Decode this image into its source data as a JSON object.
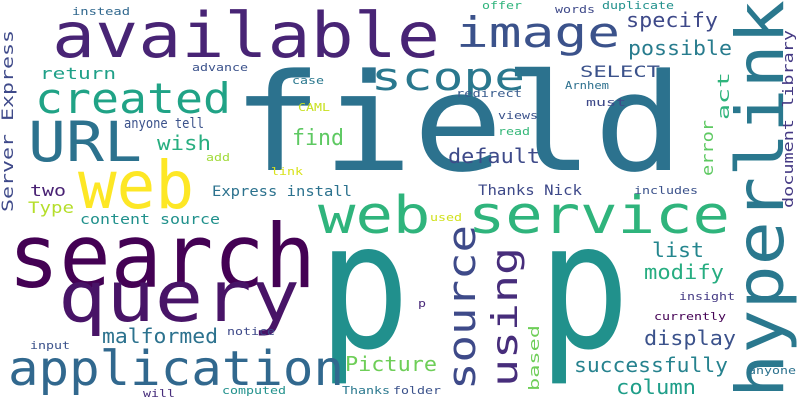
{
  "words": [
    {
      "text": "field",
      "color": "#2c728e",
      "vertical": false
    },
    {
      "text": "p",
      "color": "#21908d",
      "vertical": false
    },
    {
      "text": "p",
      "color": "#21918c",
      "vertical": false
    },
    {
      "text": "search",
      "color": "#440154",
      "vertical": false
    },
    {
      "text": "query",
      "color": "#481467",
      "vertical": false
    },
    {
      "text": "available",
      "color": "#482475",
      "vertical": false
    },
    {
      "text": "web",
      "color": "#fde725",
      "vertical": false
    },
    {
      "text": "web service",
      "color": "#2fb47c",
      "vertical": false
    },
    {
      "text": "hyperlink",
      "color": "#2a788e",
      "vertical": true
    },
    {
      "text": "application",
      "color": "#31688e",
      "vertical": false
    },
    {
      "text": "URL",
      "color": "#2c728e",
      "vertical": false
    },
    {
      "text": "created",
      "color": "#20a386",
      "vertical": false
    },
    {
      "text": "scope",
      "color": "#2a788e",
      "vertical": false
    },
    {
      "text": "image",
      "color": "#3b528b",
      "vertical": false
    },
    {
      "text": "source",
      "color": "#3e4a89",
      "vertical": true
    },
    {
      "text": "using",
      "color": "#472d7b",
      "vertical": true
    },
    {
      "text": "successfully",
      "color": "#26828e",
      "vertical": false
    },
    {
      "text": "display",
      "color": "#3b528b",
      "vertical": false
    },
    {
      "text": "column",
      "color": "#1f9e89",
      "vertical": false
    },
    {
      "text": "Picture",
      "color": "#6ece58",
      "vertical": false
    },
    {
      "text": "malformed",
      "color": "#2c728e",
      "vertical": false
    },
    {
      "text": "find",
      "color": "#5ec962",
      "vertical": false
    },
    {
      "text": "wish",
      "color": "#28ae80",
      "vertical": false
    },
    {
      "text": "default",
      "color": "#3e4a89",
      "vertical": false
    },
    {
      "text": "specify",
      "color": "#3e4989",
      "vertical": false
    },
    {
      "text": "possible",
      "color": "#287c8e",
      "vertical": false
    },
    {
      "text": "SELECT",
      "color": "#3b528b",
      "vertical": false
    },
    {
      "text": "list",
      "color": "#24868e",
      "vertical": false
    },
    {
      "text": "modify",
      "color": "#27ad81",
      "vertical": false
    },
    {
      "text": "Server Express",
      "color": "#3e4989",
      "vertical": true
    },
    {
      "text": "Type",
      "color": "#b5de2b",
      "vertical": false
    },
    {
      "text": "two",
      "color": "#482173",
      "vertical": false
    },
    {
      "text": "return",
      "color": "#1fa088",
      "vertical": false
    },
    {
      "text": "Express install",
      "color": "#2c728e",
      "vertical": false
    },
    {
      "text": "content source",
      "color": "#21918c",
      "vertical": false
    },
    {
      "text": "Thanks Nick",
      "color": "#3e4989",
      "vertical": false
    },
    {
      "text": "anyone tell",
      "color": "#3b528b",
      "vertical": false
    },
    {
      "text": "error",
      "color": "#5ec962",
      "vertical": true
    },
    {
      "text": "act",
      "color": "#2fb47c",
      "vertical": true
    },
    {
      "text": "based",
      "color": "#6ece58",
      "vertical": true
    },
    {
      "text": "document library",
      "color": "#443983",
      "vertical": true
    },
    {
      "text": "Arnhem",
      "color": "#2d708e",
      "vertical": false
    },
    {
      "text": "must",
      "color": "#3e4989",
      "vertical": false
    },
    {
      "text": "redirect",
      "color": "#375b8d",
      "vertical": false
    },
    {
      "text": "views",
      "color": "#3b528b",
      "vertical": false
    },
    {
      "text": "read",
      "color": "#35b779",
      "vertical": false
    },
    {
      "text": "words",
      "color": "#3e4989",
      "vertical": false
    },
    {
      "text": "duplicate",
      "color": "#21918c",
      "vertical": false
    },
    {
      "text": "offer",
      "color": "#2fb47c",
      "vertical": false
    },
    {
      "text": "instead",
      "color": "#31688e",
      "vertical": false
    },
    {
      "text": "advance",
      "color": "#3b528b",
      "vertical": false
    },
    {
      "text": "case",
      "color": "#2a788e",
      "vertical": false
    },
    {
      "text": "CAML",
      "color": "#c8e020",
      "vertical": false
    },
    {
      "text": "add",
      "color": "#a0da39",
      "vertical": false
    },
    {
      "text": "link",
      "color": "#d8e219",
      "vertical": false
    },
    {
      "text": "used",
      "color": "#d0e11c",
      "vertical": false
    },
    {
      "text": "includes",
      "color": "#3b528b",
      "vertical": false
    },
    {
      "text": "insight",
      "color": "#443983",
      "vertical": false
    },
    {
      "text": "currently",
      "color": "#440154",
      "vertical": false
    },
    {
      "text": "anyone",
      "color": "#2c728e",
      "vertical": false
    },
    {
      "text": "notice",
      "color": "#3e4989",
      "vertical": false
    },
    {
      "text": "input",
      "color": "#3b528b",
      "vertical": false
    },
    {
      "text": "will",
      "color": "#472d7b",
      "vertical": false
    },
    {
      "text": "computed",
      "color": "#21918c",
      "vertical": false
    },
    {
      "text": "Thanks",
      "color": "#2a788e",
      "vertical": false
    },
    {
      "text": "folder",
      "color": "#3b528b",
      "vertical": false
    },
    {
      "text": "p",
      "color": "#482878",
      "vertical": false
    }
  ]
}
